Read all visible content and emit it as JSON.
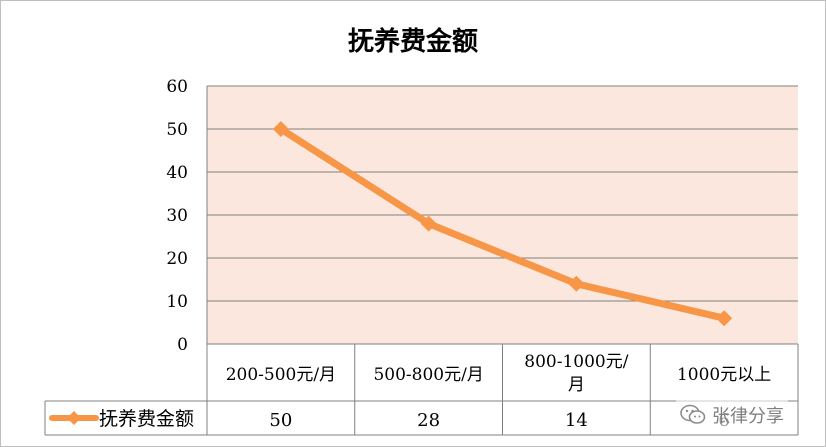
{
  "chart_data": {
    "type": "line",
    "title": "抚养费金额",
    "categories": [
      "200-500元/月",
      "500-800元/月",
      "800-1000元/月",
      "1000元以上"
    ],
    "series": [
      {
        "name": "抚养费金额",
        "values": [
          50,
          28,
          14,
          6
        ],
        "color": "#f79646"
      }
    ],
    "y_ticks": [
      "0",
      "10",
      "20",
      "30",
      "40",
      "50",
      "60"
    ],
    "ylim": [
      0,
      60
    ],
    "grid": true,
    "legend": "data-table-left",
    "data_table": true,
    "plot_background": "#fbe7dd",
    "gridline_color": "#808080"
  },
  "watermark": {
    "text": "张律分享",
    "icon": "wechat-icon"
  }
}
